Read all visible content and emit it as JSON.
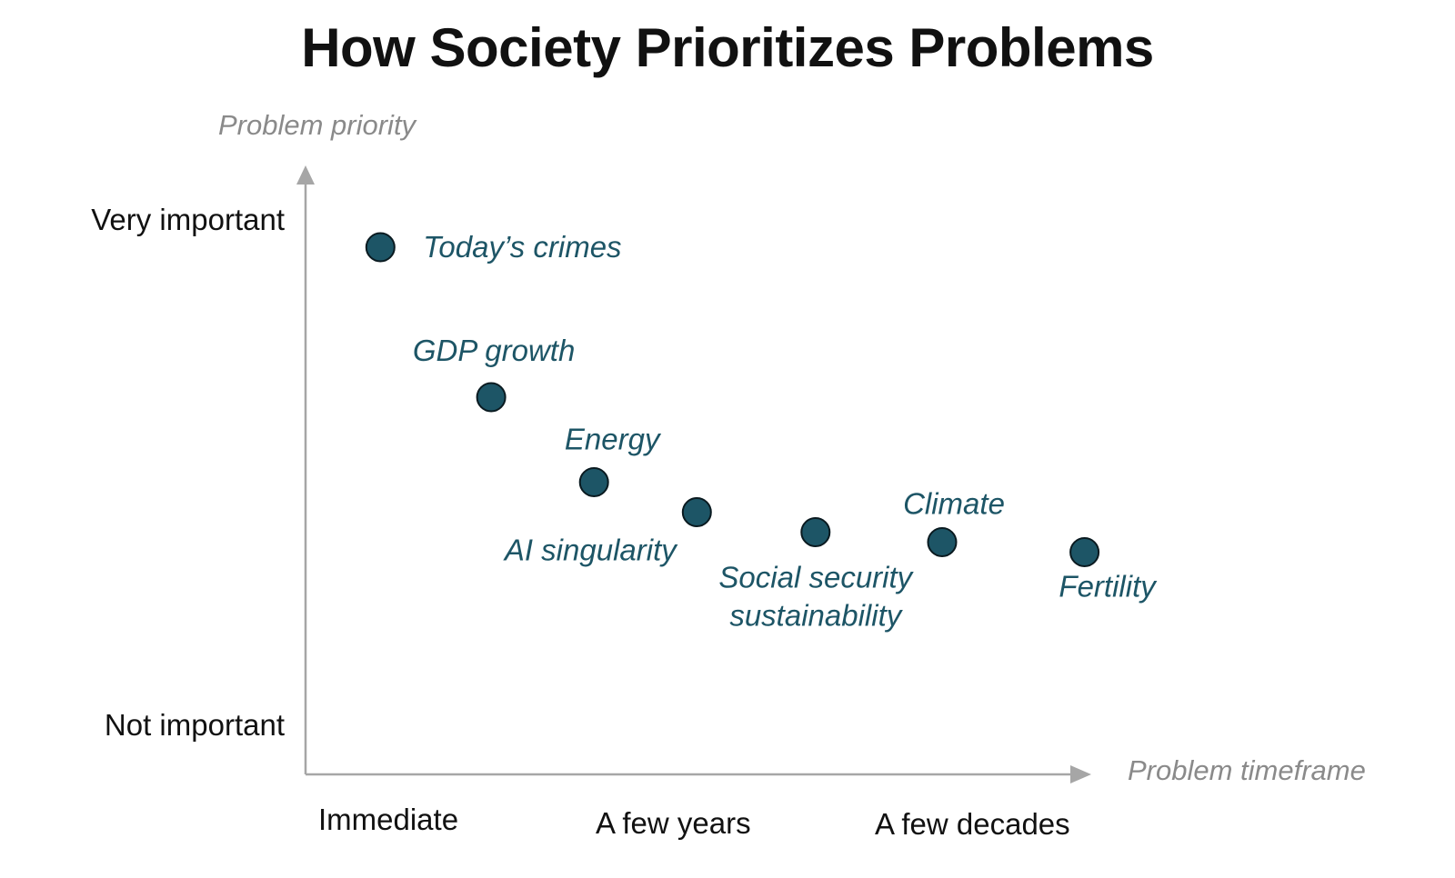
{
  "chart_data": {
    "type": "scatter",
    "title": "How Society Prioritizes Problems",
    "xlabel": "Problem timeframe",
    "ylabel": "Problem priority",
    "x_tick_labels": [
      "Immediate",
      "A few years",
      "A few decades"
    ],
    "y_tick_labels": [
      "Very important",
      "Not important"
    ],
    "xlim": [
      0,
      10
    ],
    "ylim": [
      0,
      10
    ],
    "grid": false,
    "legend": "none",
    "point_color": "#1d5566",
    "label_color": "#1d5566",
    "axis_color": "#a6a6a6",
    "points": [
      {
        "label": "Today’s crimes",
        "x": 0.9,
        "y": 9.6
      },
      {
        "label": "GDP growth",
        "x": 2.3,
        "y": 6.6
      },
      {
        "label": "Energy",
        "x": 3.6,
        "y": 4.9
      },
      {
        "label": "AI singularity",
        "x": 4.9,
        "y": 4.3
      },
      {
        "label": "Social security\nsustainability",
        "x": 6.4,
        "y": 3.9
      },
      {
        "label": "Climate",
        "x": 8.0,
        "y": 3.7
      },
      {
        "label": "Fertility",
        "x": 9.8,
        "y": 3.5
      }
    ]
  }
}
